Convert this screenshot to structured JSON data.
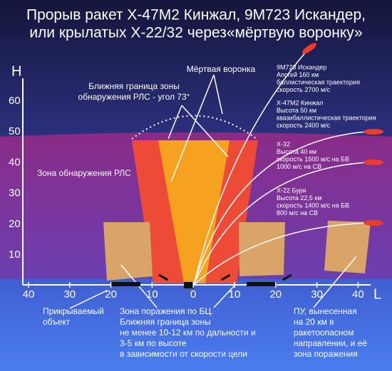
{
  "title": {
    "lines": [
      "Прорыв ракет Х-47М2 Кинжал, 9М723 Искандер,",
      "или крылатых Х-22/32 через«мёртвую воронку»"
    ]
  },
  "axes": {
    "h_label": "H",
    "l_label": "L",
    "h_ticks": [
      "60",
      "50",
      "40",
      "30",
      "20",
      "10"
    ],
    "l_ticks": [
      "40",
      "30",
      "20",
      "10",
      "0",
      "10",
      "20",
      "30",
      "40"
    ]
  },
  "labels": {
    "dead_funnel": "Мёртвая воронка",
    "near_boundary": [
      "Ближняя граница зоны",
      "обнаружения РЛС - угол 73°"
    ],
    "detection_zone": "Зона обнаружения РЛС"
  },
  "missiles": [
    {
      "lines": [
        "9М723 Искандер",
        "Апогей 160 км",
        "баллистическая траектория",
        "скорость 2700 м/с"
      ]
    },
    {
      "lines": [
        "Х-47М2 Кинжал",
        "Высота 50 км",
        "квазибаллистическая траектория",
        "скорость 2400 м/с"
      ]
    },
    {
      "lines": [
        "Х-32",
        "Высота 40 км",
        "скорость 1500 м/с на БВ",
        "1000 м/с на СВ"
      ]
    },
    {
      "lines": [
        "Х-22 Буря",
        "Высота 22,5 км",
        "скорость 1400 м/с на БВ",
        "800 м/с на СВ"
      ]
    }
  ],
  "annotations": [
    {
      "lines": [
        "Прикрываемый",
        "объект"
      ]
    },
    {
      "lines": [
        "Зона поражения по БЦ.",
        "Ближняя граница зоны",
        "не менее 10-12 км по дальности и",
        "3-5 км по высоте",
        "в зависимости от скорости цели"
      ]
    },
    {
      "lines": [
        "ПУ, вынесенная",
        "на 20 км в",
        "ракетоопасном",
        "направлении, и её",
        "зона поражения"
      ]
    }
  ]
}
